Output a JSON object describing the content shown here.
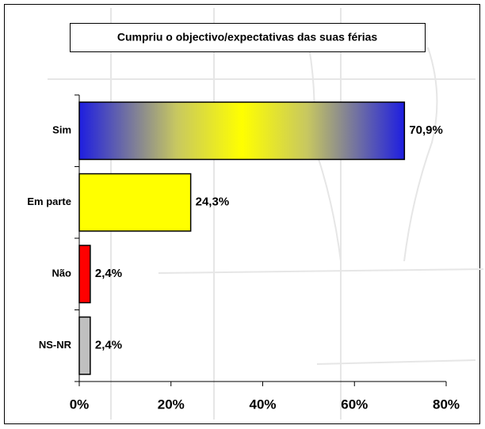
{
  "chart_data": {
    "type": "bar",
    "orientation": "horizontal",
    "title": "Cumpriu o objectivo/expectativas das suas férias",
    "categories": [
      "Sim",
      "Em parte",
      "Não",
      "NS-NR"
    ],
    "values": [
      70.9,
      24.3,
      2.4,
      2.4
    ],
    "value_labels": [
      "70,9%",
      "24,3%",
      "2,4%",
      "2,4%"
    ],
    "colors": [
      "#1e1ee0",
      "#ffff00",
      "#ff0000",
      "#c0c0c0"
    ],
    "xlim": [
      0,
      80
    ],
    "xticks": [
      {
        "value": 0,
        "label": "0%"
      },
      {
        "value": 20,
        "label": "20%"
      },
      {
        "value": 40,
        "label": "40%"
      },
      {
        "value": 60,
        "label": "60%"
      },
      {
        "value": 80,
        "label": "80%"
      }
    ],
    "grid": false
  }
}
